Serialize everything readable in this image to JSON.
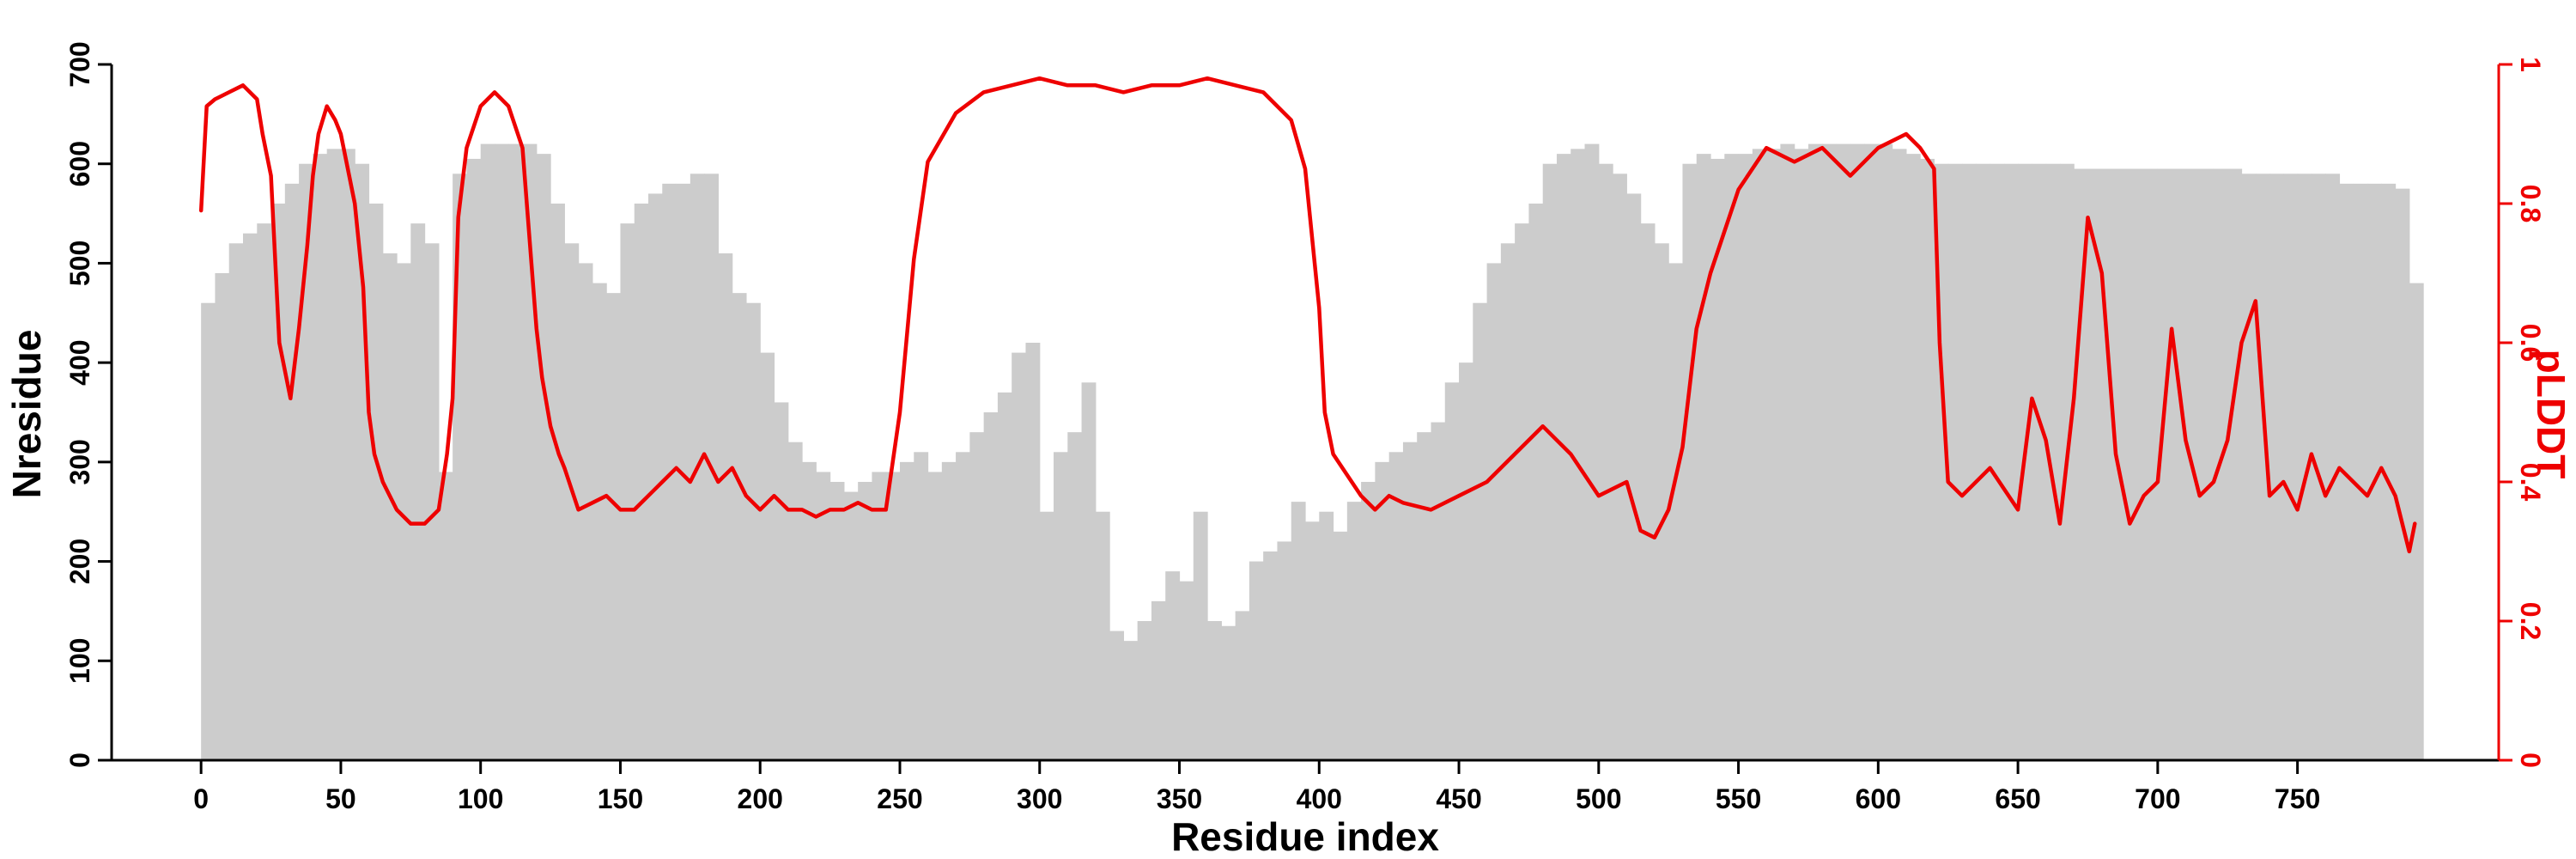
{
  "chart_data": {
    "type": "bar+line",
    "title": "",
    "xlabel": "Residue index",
    "ylabel": "Nresidue",
    "y2label": "pLDDT",
    "xlim": [
      -32,
      822
    ],
    "ylim": [
      0,
      700
    ],
    "y2lim": [
      0,
      1
    ],
    "x_ticks": [
      0,
      50,
      100,
      150,
      200,
      250,
      300,
      350,
      400,
      450,
      500,
      550,
      600,
      650,
      700,
      750
    ],
    "y_ticks": [
      0,
      100,
      200,
      300,
      400,
      500,
      600,
      700
    ],
    "y2_ticks": [
      0,
      0.2,
      0.4,
      0.6,
      0.8,
      1
    ],
    "y2_tick_labels": [
      "0",
      "0.2",
      "0.4",
      "0.6",
      "0.8",
      "1"
    ],
    "bar_color": "#cccccc",
    "line_color": "#ee0000",
    "axis_color": "#000000",
    "y2_axis_color": "#ee0000",
    "grid": false,
    "series": [
      {
        "name": "Nresidue",
        "type": "bar",
        "x": [
          0,
          5,
          10,
          15,
          20,
          25,
          30,
          35,
          40,
          45,
          50,
          55,
          60,
          65,
          70,
          75,
          80,
          85,
          90,
          95,
          100,
          105,
          110,
          115,
          120,
          125,
          130,
          135,
          140,
          145,
          150,
          155,
          160,
          165,
          170,
          175,
          180,
          185,
          190,
          195,
          200,
          205,
          210,
          215,
          220,
          225,
          230,
          235,
          240,
          245,
          250,
          255,
          260,
          265,
          270,
          275,
          280,
          285,
          290,
          295,
          300,
          305,
          310,
          315,
          320,
          325,
          330,
          335,
          340,
          345,
          350,
          355,
          360,
          365,
          370,
          375,
          380,
          385,
          390,
          395,
          400,
          405,
          410,
          415,
          420,
          425,
          430,
          435,
          440,
          445,
          450,
          455,
          460,
          465,
          470,
          475,
          480,
          485,
          490,
          495,
          500,
          505,
          510,
          515,
          520,
          525,
          530,
          535,
          540,
          545,
          550,
          555,
          560,
          565,
          570,
          575,
          580,
          585,
          590,
          595,
          600,
          605,
          610,
          615,
          620,
          625,
          630,
          635,
          640,
          645,
          650,
          655,
          660,
          665,
          670,
          675,
          680,
          685,
          690,
          695,
          700,
          705,
          710,
          715,
          720,
          725,
          730,
          735,
          740,
          745,
          750,
          755,
          760,
          765,
          770,
          775,
          780,
          785,
          790
        ],
        "values": [
          460,
          490,
          520,
          530,
          540,
          560,
          580,
          600,
          610,
          615,
          615,
          600,
          560,
          510,
          500,
          540,
          520,
          290,
          590,
          605,
          620,
          620,
          620,
          620,
          610,
          560,
          520,
          500,
          480,
          470,
          540,
          560,
          570,
          580,
          580,
          590,
          590,
          510,
          470,
          460,
          410,
          360,
          320,
          300,
          290,
          280,
          270,
          280,
          290,
          290,
          300,
          310,
          290,
          300,
          310,
          330,
          350,
          370,
          410,
          420,
          250,
          310,
          330,
          380,
          250,
          130,
          120,
          140,
          160,
          190,
          180,
          250,
          140,
          135,
          150,
          200,
          210,
          220,
          260,
          240,
          250,
          230,
          260,
          280,
          300,
          310,
          320,
          330,
          340,
          380,
          400,
          460,
          500,
          520,
          540,
          560,
          600,
          610,
          615,
          620,
          600,
          590,
          570,
          540,
          520,
          500,
          600,
          610,
          605,
          610,
          610,
          615,
          615,
          620,
          615,
          620,
          620,
          620,
          620,
          620,
          620,
          615,
          610,
          605,
          600,
          600,
          600,
          600,
          600,
          600,
          600,
          600,
          600,
          600,
          595,
          595,
          595,
          595,
          595,
          595,
          595,
          595,
          595,
          595,
          595,
          595,
          590,
          590,
          590,
          590,
          590,
          590,
          590,
          580,
          580,
          580,
          580,
          575,
          480
        ]
      },
      {
        "name": "pLDDT",
        "type": "line",
        "x": [
          0,
          2,
          5,
          10,
          15,
          20,
          22,
          25,
          28,
          30,
          32,
          35,
          38,
          40,
          42,
          45,
          48,
          50,
          55,
          58,
          60,
          62,
          65,
          70,
          75,
          80,
          85,
          88,
          90,
          92,
          95,
          100,
          105,
          110,
          115,
          120,
          122,
          125,
          128,
          130,
          135,
          140,
          145,
          150,
          155,
          160,
          165,
          170,
          175,
          180,
          185,
          190,
          195,
          200,
          205,
          210,
          215,
          220,
          225,
          230,
          235,
          240,
          245,
          250,
          255,
          260,
          270,
          280,
          290,
          300,
          310,
          320,
          330,
          340,
          350,
          360,
          370,
          380,
          390,
          395,
          400,
          402,
          405,
          410,
          415,
          420,
          425,
          430,
          440,
          450,
          460,
          470,
          480,
          490,
          500,
          510,
          515,
          520,
          525,
          530,
          535,
          540,
          545,
          550,
          560,
          570,
          580,
          590,
          600,
          610,
          615,
          620,
          622,
          625,
          630,
          640,
          650,
          655,
          660,
          665,
          670,
          675,
          680,
          685,
          690,
          695,
          700,
          705,
          710,
          715,
          720,
          725,
          730,
          735,
          740,
          745,
          750,
          755,
          760,
          765,
          770,
          775,
          780,
          785,
          790,
          792
        ],
        "values": [
          0.79,
          0.94,
          0.95,
          0.96,
          0.97,
          0.95,
          0.9,
          0.84,
          0.6,
          0.56,
          0.52,
          0.62,
          0.74,
          0.84,
          0.9,
          0.94,
          0.92,
          0.9,
          0.8,
          0.68,
          0.5,
          0.44,
          0.4,
          0.36,
          0.34,
          0.34,
          0.36,
          0.44,
          0.52,
          0.78,
          0.88,
          0.94,
          0.96,
          0.94,
          0.88,
          0.62,
          0.55,
          0.48,
          0.44,
          0.42,
          0.36,
          0.37,
          0.38,
          0.36,
          0.36,
          0.38,
          0.4,
          0.42,
          0.4,
          0.44,
          0.4,
          0.42,
          0.38,
          0.36,
          0.38,
          0.36,
          0.36,
          0.35,
          0.36,
          0.36,
          0.37,
          0.36,
          0.36,
          0.5,
          0.72,
          0.86,
          0.93,
          0.96,
          0.97,
          0.98,
          0.97,
          0.97,
          0.96,
          0.97,
          0.97,
          0.98,
          0.97,
          0.96,
          0.92,
          0.85,
          0.65,
          0.5,
          0.44,
          0.41,
          0.38,
          0.36,
          0.38,
          0.37,
          0.36,
          0.38,
          0.4,
          0.44,
          0.48,
          0.44,
          0.38,
          0.4,
          0.33,
          0.32,
          0.36,
          0.45,
          0.62,
          0.7,
          0.76,
          0.82,
          0.88,
          0.86,
          0.88,
          0.84,
          0.88,
          0.9,
          0.88,
          0.85,
          0.6,
          0.4,
          0.38,
          0.42,
          0.36,
          0.52,
          0.46,
          0.34,
          0.52,
          0.78,
          0.7,
          0.44,
          0.34,
          0.38,
          0.4,
          0.62,
          0.46,
          0.38,
          0.4,
          0.46,
          0.6,
          0.66,
          0.38,
          0.4,
          0.36,
          0.44,
          0.38,
          0.42,
          0.4,
          0.38,
          0.42,
          0.38,
          0.3,
          0.34
        ]
      }
    ]
  }
}
